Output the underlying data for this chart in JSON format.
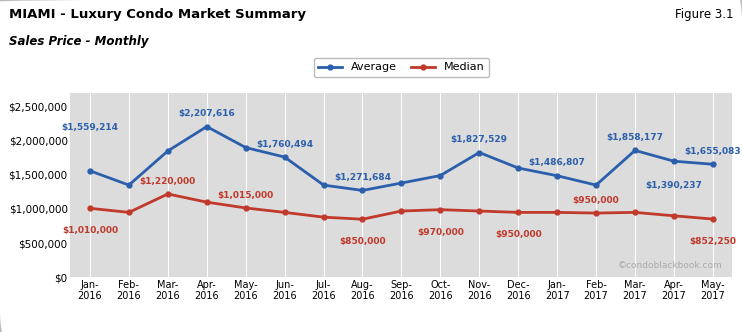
{
  "title_line1": "MIAMI - Luxury Condo Market Summary",
  "title_line2": "Sales Price - Monthly",
  "figure_label": "Figure 3.1",
  "watermark": "©condoblackbook.com",
  "x_labels": [
    "Jan-\n2016",
    "Feb-\n2016",
    "Mar-\n2016",
    "Apr-\n2016",
    "May-\n2016",
    "Jun-\n2016",
    "Jul-\n2016",
    "Aug-\n2016",
    "Sep-\n2016",
    "Oct-\n2016",
    "Nov-\n2016",
    "Dec-\n2016",
    "Jan-\n2017",
    "Feb-\n2017",
    "Mar-\n2017",
    "Apr-\n2017",
    "May-\n2017"
  ],
  "average": [
    1559214,
    1350000,
    1850000,
    2207616,
    1900000,
    1760494,
    1350000,
    1271684,
    1380000,
    1490000,
    1827529,
    1600000,
    1486807,
    1350000,
    1858177,
    1700000,
    1655083
  ],
  "median": [
    1010000,
    950000,
    1220000,
    1100000,
    1015000,
    950000,
    880000,
    850000,
    970000,
    990000,
    970000,
    950000,
    950000,
    940000,
    950000,
    900000,
    852250
  ],
  "avg_color": "#2b5fac",
  "med_color": "#c0392b",
  "bg_color": "#ffffff",
  "plot_bg_color": "#dcdcdc",
  "ylim": [
    0,
    2700000
  ],
  "yticks": [
    0,
    500000,
    1000000,
    1500000,
    2000000,
    2500000
  ]
}
